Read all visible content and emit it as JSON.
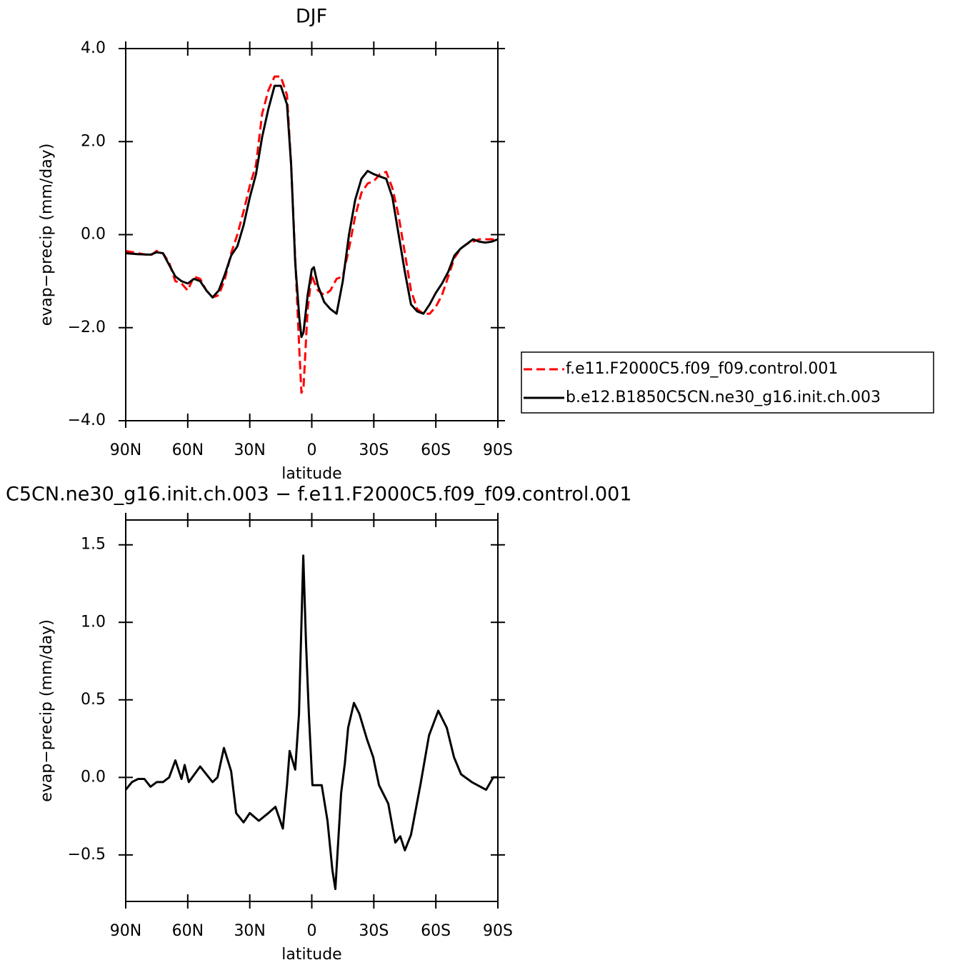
{
  "chart_data": [
    {
      "type": "line",
      "title": "DJF",
      "xlabel": "latitude",
      "ylabel": "evap−precip (mm/day)",
      "x": [
        90,
        84,
        78,
        75,
        72,
        69,
        66,
        63,
        60,
        57,
        54,
        51,
        48,
        45,
        42,
        39,
        36,
        33,
        30,
        27,
        24,
        21,
        18,
        15,
        12,
        10,
        8,
        6,
        5,
        4,
        2,
        0,
        -1,
        -3,
        -6,
        -9,
        -12,
        -15,
        -18,
        -21,
        -24,
        -27,
        -30,
        -33,
        -36,
        -39,
        -42,
        -45,
        -48,
        -51,
        -54,
        -57,
        -60,
        -63,
        -66,
        -69,
        -72,
        -75,
        -78,
        -81,
        -84,
        -87,
        -90
      ],
      "series": [
        {
          "name": "f.e11.F2000C5.f09_f09.control.001",
          "color": "#ff0000",
          "style": "dashed",
          "values": [
            -0.35,
            -0.4,
            -0.45,
            -0.35,
            -0.4,
            -0.6,
            -1.0,
            -1.05,
            -1.2,
            -0.9,
            -0.95,
            -1.2,
            -1.35,
            -1.3,
            -0.95,
            -0.4,
            0.0,
            0.5,
            1.05,
            1.5,
            2.6,
            3.1,
            3.4,
            3.4,
            3.0,
            1.5,
            -0.5,
            -2.5,
            -3.4,
            -3.3,
            -1.6,
            -0.85,
            -1.0,
            -1.2,
            -1.3,
            -1.2,
            -0.95,
            -0.9,
            -0.3,
            0.4,
            0.9,
            1.1,
            1.15,
            1.3,
            1.35,
            1.0,
            0.4,
            -0.4,
            -1.2,
            -1.6,
            -1.7,
            -1.7,
            -1.55,
            -1.3,
            -0.9,
            -0.5,
            -0.3,
            -0.2,
            -0.15,
            -0.1,
            -0.1,
            -0.1,
            -0.1
          ]
        },
        {
          "name": "b.e12.B1850C5CN.ne30_g16.init.ch.003",
          "color": "#000000",
          "style": "solid",
          "values": [
            -0.4,
            -0.42,
            -0.43,
            -0.38,
            -0.4,
            -0.65,
            -0.9,
            -1.0,
            -1.05,
            -0.95,
            -1.0,
            -1.2,
            -1.35,
            -1.2,
            -0.85,
            -0.45,
            -0.25,
            0.2,
            0.8,
            1.3,
            2.1,
            2.7,
            3.2,
            3.2,
            2.8,
            1.5,
            -0.6,
            -1.8,
            -2.2,
            -2.1,
            -1.3,
            -0.75,
            -0.7,
            -1.1,
            -1.45,
            -1.6,
            -1.7,
            -1.0,
            0.0,
            0.75,
            1.2,
            1.37,
            1.3,
            1.25,
            1.2,
            0.8,
            0.0,
            -0.8,
            -1.5,
            -1.65,
            -1.7,
            -1.5,
            -1.25,
            -1.05,
            -0.8,
            -0.45,
            -0.3,
            -0.2,
            -0.1,
            -0.15,
            -0.17,
            -0.15,
            -0.1
          ]
        }
      ],
      "xlim": [
        90,
        -90
      ],
      "xticks": [
        {
          "value": 90,
          "label": "90N"
        },
        {
          "value": 60,
          "label": "60N"
        },
        {
          "value": 30,
          "label": "30N"
        },
        0,
        {
          "value": -30,
          "label": "30S"
        },
        {
          "value": -60,
          "label": "60S"
        },
        {
          "value": -90,
          "label": "90S"
        }
      ],
      "ylim": [
        -4,
        4
      ],
      "yticks": [
        {
          "value": 4,
          "label": "4.0"
        },
        {
          "value": 2,
          "label": "2.0"
        },
        {
          "value": 0,
          "label": "0.0"
        },
        {
          "value": -2,
          "label": "−2.0"
        },
        {
          "value": -4,
          "label": "−4.0"
        }
      ],
      "legend": "right"
    },
    {
      "type": "line",
      "title": "C5CN.ne30_g16.init.ch.003 − f.e11.F2000C5.f09_f09.control.001",
      "xlabel": "latitude",
      "ylabel": "evap−precip (mm/day)",
      "x": [
        90,
        87,
        84,
        81,
        78,
        75,
        72,
        69,
        66,
        63,
        61.5,
        59.5,
        54,
        48,
        45.6,
        42.5,
        39,
        36.6,
        33,
        30,
        25.6,
        21,
        17.6,
        14,
        12,
        10.7,
        8,
        6.2,
        4.1,
        2.8,
        1.4,
        -0.3,
        -4.8,
        -7.6,
        -10,
        -11.4,
        -14.2,
        -16,
        -17.6,
        -20.4,
        -23,
        -26.6,
        -29.7,
        -32.5,
        -37,
        -40.4,
        -42.8,
        -45,
        -48,
        -52.5,
        -56.7,
        -61.2,
        -65.3,
        -68.8,
        -72.2,
        -77.4,
        -84.3,
        -87.8,
        -90
      ],
      "series": [
        {
          "color": "#000000",
          "style": "solid",
          "values": [
            -0.08,
            -0.03,
            -0.01,
            -0.01,
            -0.06,
            -0.03,
            -0.03,
            0.0,
            0.11,
            -0.01,
            0.08,
            -0.03,
            0.07,
            -0.03,
            0.0,
            0.19,
            0.04,
            -0.23,
            -0.29,
            -0.23,
            -0.28,
            -0.23,
            -0.19,
            -0.33,
            -0.05,
            0.17,
            0.05,
            0.41,
            1.43,
            0.87,
            0.41,
            -0.05,
            -0.05,
            -0.28,
            -0.6,
            -0.72,
            -0.1,
            0.09,
            0.32,
            0.48,
            0.41,
            0.25,
            0.13,
            -0.05,
            -0.17,
            -0.42,
            -0.38,
            -0.47,
            -0.37,
            -0.05,
            0.27,
            0.43,
            0.32,
            0.13,
            0.02,
            -0.03,
            -0.08,
            0.0,
            0.0
          ]
        }
      ],
      "xlim": [
        90,
        -90
      ],
      "xticks": [
        {
          "value": 90,
          "label": "90N"
        },
        {
          "value": 60,
          "label": "60N"
        },
        {
          "value": 30,
          "label": "30N"
        },
        0,
        {
          "value": -30,
          "label": "30S"
        },
        {
          "value": -60,
          "label": "60S"
        },
        {
          "value": -90,
          "label": "90S"
        }
      ],
      "ylim": [
        -0.8,
        1.66
      ],
      "yticks": [
        1.5,
        {
          "value": 1,
          "label": "1.0"
        },
        0.5,
        {
          "value": 0,
          "label": "0.0"
        },
        {
          "value": -0.5,
          "label": "−0.5"
        }
      ]
    }
  ]
}
